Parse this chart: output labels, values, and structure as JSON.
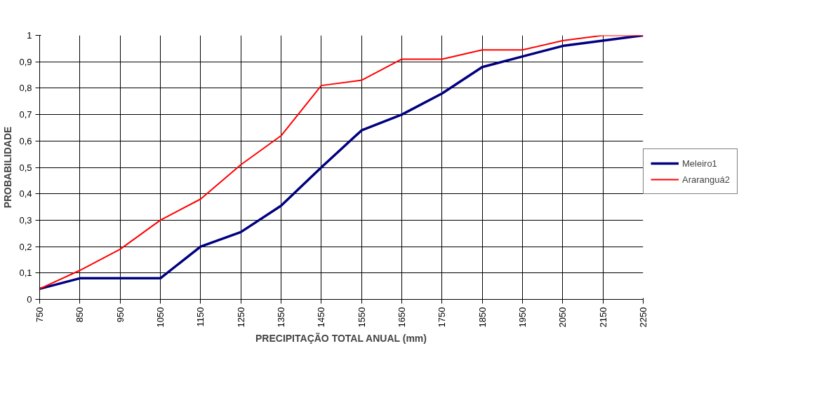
{
  "chart_data": {
    "type": "line",
    "xlabel": "PRECIPITAÇÃO TOTAL ANUAL (mm)",
    "ylabel": "PROBABILIDADE",
    "x": [
      750,
      850,
      950,
      1050,
      1150,
      1250,
      1350,
      1450,
      1550,
      1650,
      1750,
      1850,
      1950,
      2050,
      2150,
      2250
    ],
    "xlim": [
      750,
      2250
    ],
    "xticks": [
      750,
      850,
      950,
      1050,
      1150,
      1250,
      1350,
      1450,
      1550,
      1650,
      1750,
      1850,
      1950,
      2050,
      2150,
      2250
    ],
    "ylim": [
      0,
      1
    ],
    "yticks": [
      0,
      {
        "value": 0.1,
        "label": "0,1"
      },
      {
        "value": 0.2,
        "label": "0,2"
      },
      {
        "value": 0.3,
        "label": "0,3"
      },
      {
        "value": 0.4,
        "label": "0,4"
      },
      {
        "value": 0.5,
        "label": "0,5"
      },
      {
        "value": 0.6,
        "label": "0,6"
      },
      {
        "value": 0.7,
        "label": "0,7"
      },
      {
        "value": 0.8,
        "label": "0,8"
      },
      {
        "value": 0.9,
        "label": "0,9"
      },
      1
    ],
    "series": [
      {
        "name": "Meleiro1",
        "color": "#000080",
        "values": [
          0.04,
          0.08,
          0.08,
          0.08,
          0.2,
          0.255,
          0.355,
          0.5,
          0.64,
          0.7,
          0.78,
          0.88,
          0.92,
          0.96,
          0.98,
          1
        ]
      },
      {
        "name": "Araranguá2",
        "color": "#ff0000",
        "values": [
          0.04,
          0.11,
          0.19,
          0.3,
          0.38,
          0.51,
          0.62,
          0.81,
          0.83,
          0.91,
          0.91,
          0.945,
          0.945,
          0.98,
          1,
          1
        ]
      }
    ],
    "grid": true,
    "legend": "right",
    "marker": "none",
    "line_style": "solid"
  }
}
